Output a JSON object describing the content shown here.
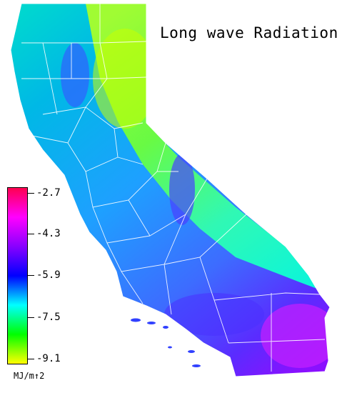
{
  "map": {
    "title": "Long wave Radiation",
    "region": "California",
    "units": "MJ/m↑2",
    "legend": {
      "ticks": [
        "-2.7",
        "-4.3",
        "-5.9",
        "-7.5",
        "-9.1"
      ],
      "colors_top_to_bottom": [
        "#ff0050",
        "#ff00ff",
        "#8800ff",
        "#0000ff",
        "#00ffff",
        "#00ff00",
        "#ffff00"
      ]
    },
    "colors": {
      "boundary": "#ffffff",
      "background": "#ffffff"
    }
  }
}
